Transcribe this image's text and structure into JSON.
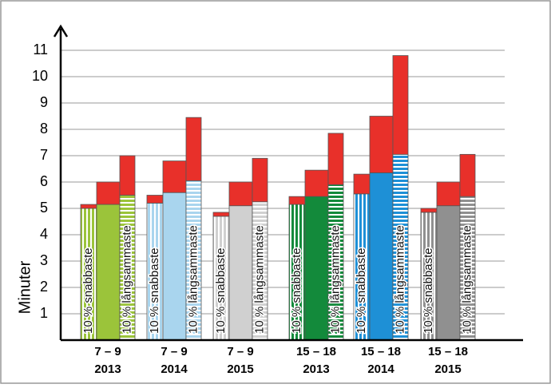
{
  "chart_data": {
    "type": "grouped-stacked-bar",
    "y_label": "Minuter",
    "ylim": [
      0,
      12
    ],
    "yticks": [
      1,
      2,
      3,
      4,
      5,
      6,
      7,
      8,
      9,
      10,
      11
    ],
    "grid": true,
    "top_color": "#e8302a",
    "bar_labels": [
      "10 % snabbaste",
      null,
      "10 % långsammaste"
    ],
    "groups": [
      {
        "label": [
          "7 – 9",
          "2013"
        ],
        "color": "#9bc43a",
        "base": [
          5.0,
          5.15,
          5.5
        ],
        "top": [
          0.15,
          0.85,
          1.5
        ]
      },
      {
        "label": [
          "7 – 9",
          "2014"
        ],
        "color": "#a9d5ee",
        "base": [
          5.2,
          5.6,
          6.05
        ],
        "top": [
          0.3,
          1.2,
          2.4
        ]
      },
      {
        "label": [
          "7 – 9",
          "2015"
        ],
        "color": "#d0d0d0",
        "base": [
          4.7,
          5.1,
          5.25
        ],
        "top": [
          0.15,
          0.9,
          1.65
        ]
      },
      {
        "label": [
          "15 – 18",
          "2013"
        ],
        "color": "#138a3b",
        "base": [
          5.15,
          5.45,
          5.9
        ],
        "top": [
          0.3,
          1.0,
          1.95
        ]
      },
      {
        "label": [
          "15 – 18",
          "2014"
        ],
        "color": "#1e90d6",
        "base": [
          5.55,
          6.35,
          7.05
        ],
        "top": [
          0.75,
          2.15,
          3.75
        ]
      },
      {
        "label": [
          "15 – 18",
          "2015"
        ],
        "color": "#909090",
        "base": [
          4.85,
          5.1,
          5.45
        ],
        "top": [
          0.15,
          0.9,
          1.6
        ]
      }
    ]
  }
}
